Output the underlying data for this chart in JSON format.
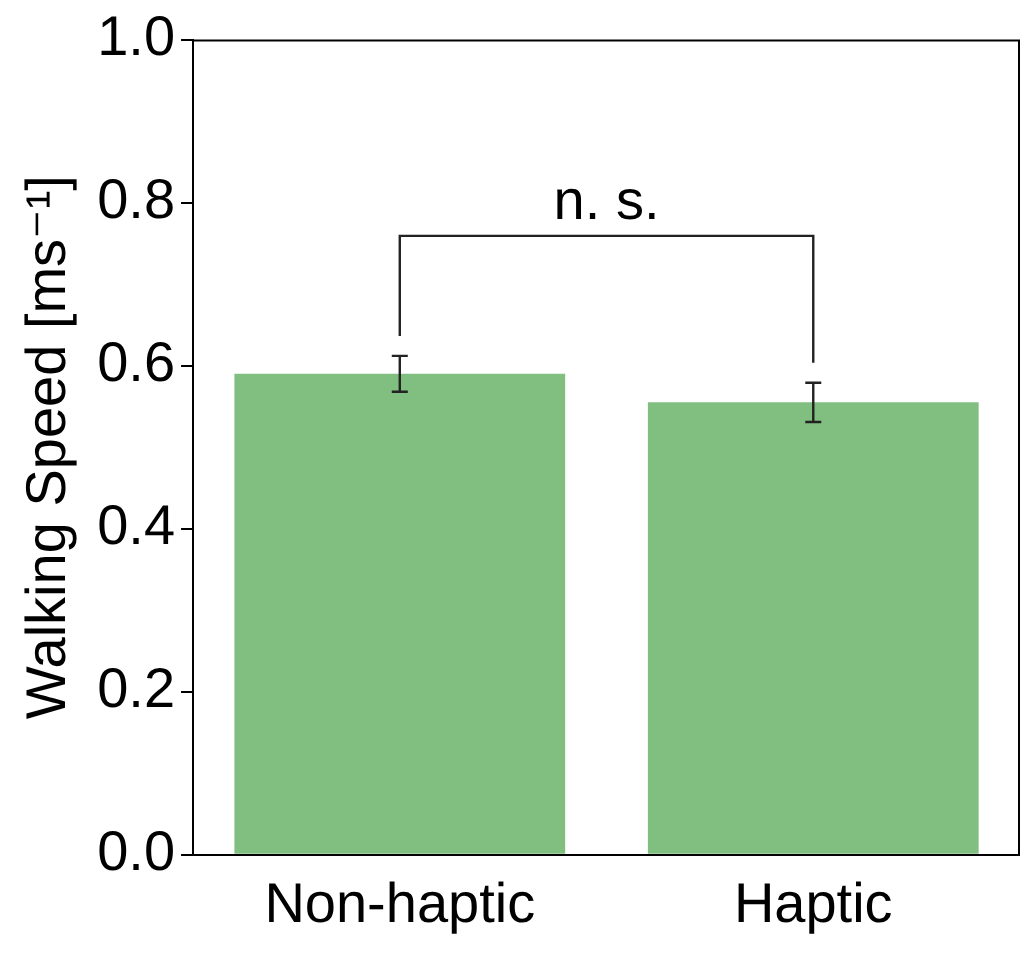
{
  "chart_data": {
    "type": "bar",
    "ylabel": "Walking Speed [ms⁻¹]",
    "categories": [
      "Non-haptic",
      "Haptic"
    ],
    "values": [
      0.59,
      0.555
    ],
    "errors": [
      0.022,
      0.024
    ],
    "color": "#81bf81",
    "ylim": [
      0,
      1
    ],
    "yticks": [
      {
        "value": 0,
        "label": "0.0"
      },
      {
        "value": 0.2,
        "label": "0.2"
      },
      {
        "value": 0.4,
        "label": "0.4"
      },
      {
        "value": 0.6,
        "label": "0.6"
      },
      {
        "value": 0.8,
        "label": "0.8"
      },
      {
        "value": 1,
        "label": "1.0"
      }
    ],
    "grid": false,
    "legend": false,
    "annotations": [
      "n. s."
    ]
  }
}
